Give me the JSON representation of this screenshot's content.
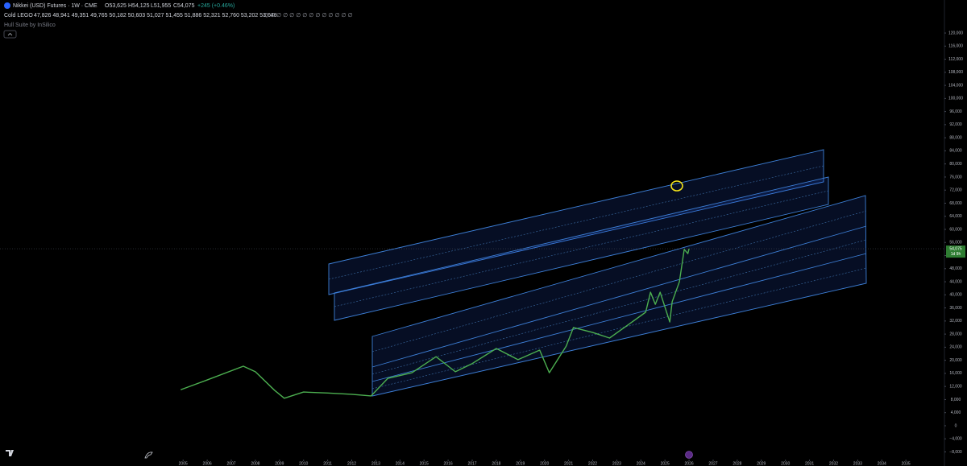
{
  "chart_data": {
    "type": "line",
    "title": "Nikkei (USD) Futures · 1W · CME",
    "ohlc": [
      "O53,625",
      "H54,125",
      "L51,955",
      "C54,075",
      "+245 (+0.46%)"
    ],
    "indicator_name": "Cold LEGO",
    "indicator_values": "47,826 48,941 49,351 49,765 50,182 50,603 51,027 51,455 51,886 52,321 52,760 53,202 53,648",
    "indicator_empty": "∅ ∅ ∅ ∅ ∅ ∅ ∅ ∅ ∅ ∅ ∅ ∅ ∅ ∅",
    "overlay_name": "Hull Suite by InSilico",
    "price_tag": {
      "value": 54075,
      "label": "54,075"
    },
    "countdown": "1d 9h",
    "color": "#4caf50",
    "x": [
      2004.9,
      2006.0,
      2007.5,
      2008.0,
      2008.8,
      2009.2,
      2010.0,
      2011.0,
      2012.0,
      2012.8,
      2013.5,
      2014.5,
      2015.5,
      2016.3,
      2017.0,
      2018.0,
      2018.9,
      2019.8,
      2020.2,
      2020.9,
      2021.2,
      2022.0,
      2022.7,
      2023.5,
      2024.2,
      2024.4,
      2024.6,
      2024.8,
      2025.2,
      2025.3,
      2025.6,
      2025.8,
      2025.95,
      2026.0
    ],
    "values": [
      11000,
      14000,
      18200,
      16500,
      10800,
      8400,
      10300,
      10000,
      9600,
      9100,
      14500,
      16200,
      21100,
      16500,
      19000,
      23600,
      20200,
      23100,
      16200,
      24300,
      30000,
      28500,
      26800,
      31000,
      34700,
      40800,
      37100,
      40800,
      31700,
      37900,
      44000,
      53900,
      52600,
      54075
    ],
    "xlim": [
      1997.4,
      2036.6
    ],
    "xticks": [
      2005,
      2006,
      2007,
      2008,
      2009,
      2010,
      2011,
      2012,
      2013,
      2014,
      2015,
      2016,
      2017,
      2018,
      2019,
      2020,
      2021,
      2022,
      2023,
      2024,
      2025,
      2026,
      2027,
      2028,
      2029,
      2030,
      2031,
      2032,
      2033,
      2034,
      2035
    ],
    "ylim": [
      -11000,
      125000
    ],
    "yticks": [
      {
        "value": -8000,
        "label": "−8,000"
      },
      {
        "value": -4000,
        "label": "−4,000"
      },
      0,
      {
        "value": 4000,
        "label": "4,000"
      },
      {
        "value": 8000,
        "label": "8,000"
      },
      {
        "value": 12000,
        "label": "12,000"
      },
      {
        "value": 16000,
        "label": "16,000"
      },
      {
        "value": 20000,
        "label": "20,000"
      },
      {
        "value": 24000,
        "label": "24,000"
      },
      {
        "value": 28000,
        "label": "28,000"
      },
      {
        "value": 32000,
        "label": "32,000"
      },
      {
        "value": 36000,
        "label": "36,000"
      },
      {
        "value": 40000,
        "label": "40,000"
      },
      {
        "value": 44000,
        "label": "44,000"
      },
      {
        "value": 48000,
        "label": "48,000"
      },
      {
        "value": 52000,
        "label": "52,000"
      },
      {
        "value": 56000,
        "label": "56,000"
      },
      {
        "value": 60000,
        "label": "60,000"
      },
      {
        "value": 64000,
        "label": "64,000"
      },
      {
        "value": 68000,
        "label": "68,000"
      },
      {
        "value": 72000,
        "label": "72,000"
      },
      {
        "value": 76000,
        "label": "76,000"
      },
      {
        "value": 80000,
        "label": "80,000"
      },
      {
        "value": 84000,
        "label": "84,000"
      },
      {
        "value": 88000,
        "label": "88,000"
      },
      {
        "value": 92000,
        "label": "92,000"
      },
      {
        "value": 96000,
        "label": "96,000"
      },
      {
        "value": 100000,
        "label": "100,000"
      },
      {
        "value": 104000,
        "label": "104,000"
      },
      {
        "value": 108000,
        "label": "108,000"
      },
      {
        "value": 112000,
        "label": "112,000"
      },
      {
        "value": 116000,
        "label": "116,000"
      },
      {
        "value": 120000,
        "label": "120,000"
      }
    ],
    "grid": false
  }
}
